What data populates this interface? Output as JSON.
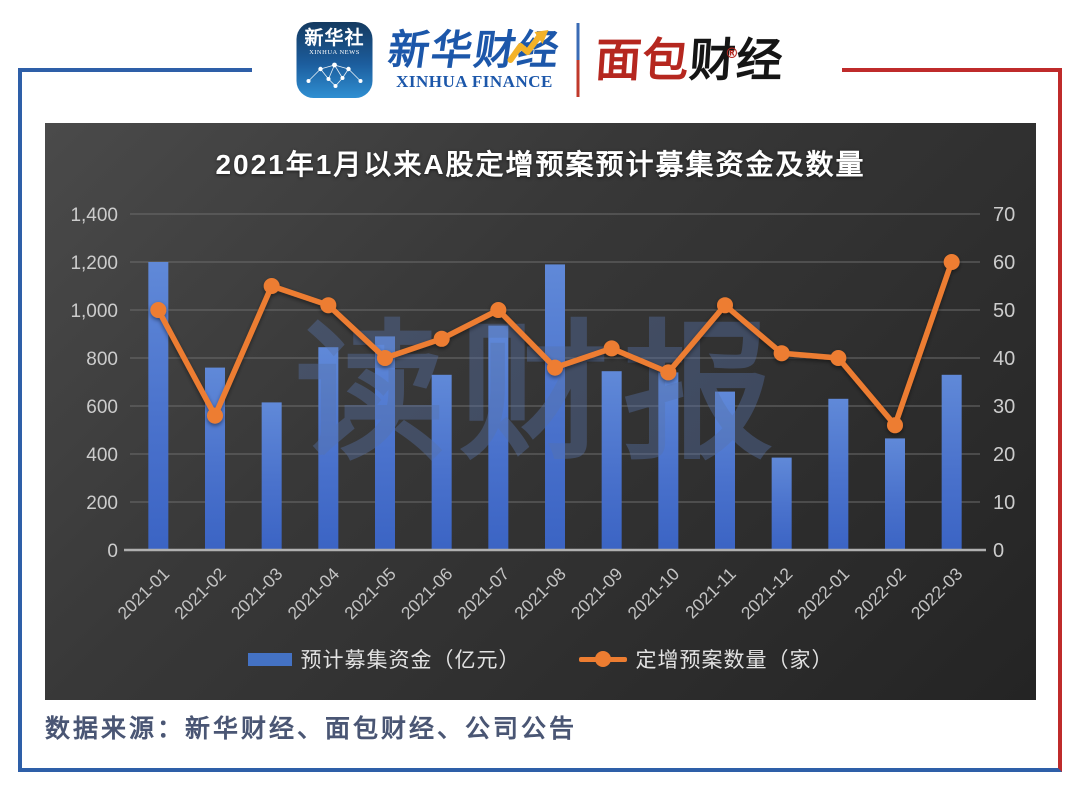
{
  "header": {
    "xinhua_news_app": {
      "cn": "新华社",
      "en": "XINHUA NEWS"
    },
    "xinhua_finance": {
      "cn": "新华财经",
      "en": "XINHUA FINANCE"
    },
    "mianbao_finance": {
      "part_red": "面包",
      "part_black": "财经",
      "reg": "®"
    }
  },
  "chart_data": {
    "type": "bar+line",
    "title": "2021年1月以来A股定增预案预计募集资金及数量",
    "watermark": "读财报",
    "categories": [
      "2021-01",
      "2021-02",
      "2021-03",
      "2021-04",
      "2021-05",
      "2021-06",
      "2021-07",
      "2021-08",
      "2021-09",
      "2021-10",
      "2021-11",
      "2021-12",
      "2022-01",
      "2022-02",
      "2022-03"
    ],
    "series": [
      {
        "name": "预计募集资金（亿元）",
        "type": "bar",
        "axis": "left",
        "values": [
          1200,
          760,
          615,
          845,
          890,
          730,
          935,
          1190,
          745,
          740,
          660,
          385,
          630,
          465,
          730
        ]
      },
      {
        "name": "定增预案数量（家）",
        "type": "line",
        "axis": "right",
        "values": [
          50,
          28,
          55,
          51,
          40,
          44,
          50,
          38,
          42,
          37,
          51,
          41,
          40,
          26,
          60
        ]
      }
    ],
    "left_axis": {
      "min": 0,
      "max": 1400,
      "step": 200,
      "tick_labels": [
        "0",
        "200",
        "400",
        "600",
        "800",
        "1,000",
        "1,200",
        "1,400"
      ]
    },
    "right_axis": {
      "min": 0,
      "max": 70,
      "step": 10,
      "tick_labels": [
        "0",
        "10",
        "20",
        "30",
        "40",
        "50",
        "60",
        "70"
      ]
    },
    "grid": true,
    "legend_position": "bottom"
  },
  "footer": {
    "source": "数据来源：新华财经、面包财经、公司公告"
  },
  "colors": {
    "bar_top": "#6089d8",
    "bar_bottom": "#3b64c4",
    "bar_legend": "#4472c4",
    "line": "#ed7d31",
    "grid": "#6c6c6c",
    "axis_zero": "#b0b0b0",
    "tick_text": "#cccccc",
    "xlabel_text": "#c4c4c4",
    "watermark": "rgba(88,116,170,0.40)",
    "frame_blue": "#2e5fa8",
    "frame_red": "#bf2b2b"
  }
}
